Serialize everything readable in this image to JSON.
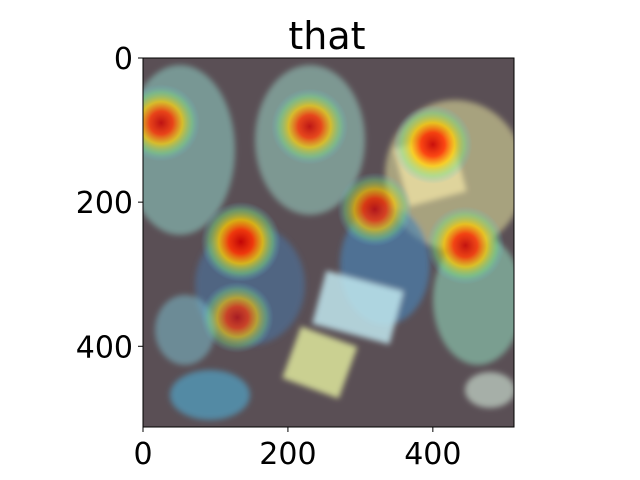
{
  "chart_data": {
    "type": "heatmap",
    "title": "that",
    "xlabel": "",
    "ylabel": "",
    "xlim": [
      0,
      512
    ],
    "ylim": [
      512,
      0
    ],
    "x_ticks": [
      {
        "value": 0,
        "label": "0"
      },
      {
        "value": 200,
        "label": "200"
      },
      {
        "value": 400,
        "label": "400"
      }
    ],
    "y_ticks": [
      {
        "value": 0,
        "label": "0"
      },
      {
        "value": 200,
        "label": "200"
      },
      {
        "value": 400,
        "label": "400"
      }
    ],
    "grid": false,
    "legend": "none",
    "colormap": "jet",
    "image_content": "overhead photo of children reading books with attention heatmap overlay",
    "hotspots": [
      {
        "x": 25,
        "y": 90,
        "intensity": 0.85
      },
      {
        "x": 230,
        "y": 95,
        "intensity": 0.8
      },
      {
        "x": 400,
        "y": 120,
        "intensity": 0.95
      },
      {
        "x": 135,
        "y": 255,
        "intensity": 1.0
      },
      {
        "x": 320,
        "y": 210,
        "intensity": 0.7
      },
      {
        "x": 445,
        "y": 260,
        "intensity": 0.9
      },
      {
        "x": 130,
        "y": 360,
        "intensity": 0.55
      }
    ]
  }
}
